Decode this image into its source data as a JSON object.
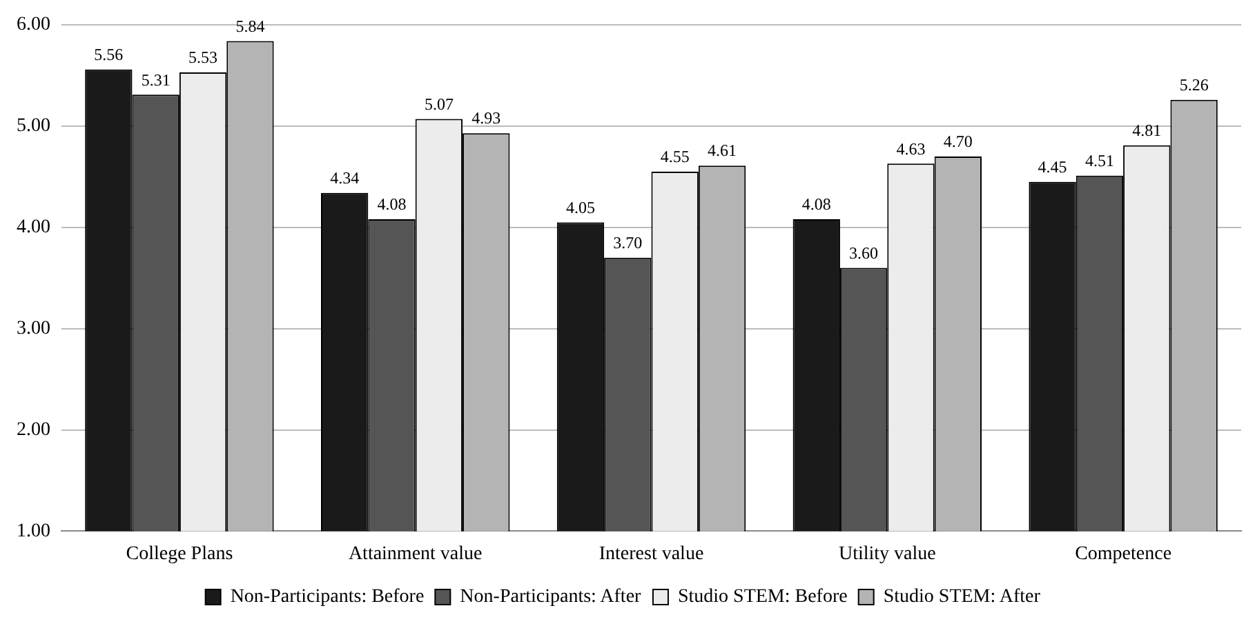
{
  "chart_data": {
    "type": "bar",
    "categories": [
      "College Plans",
      "Attainment value",
      "Interest value",
      "Utility value",
      "Competence"
    ],
    "series": [
      {
        "name": "Non-Participants: Before",
        "color": "#1a1a1a",
        "values": [
          5.56,
          4.34,
          4.05,
          4.08,
          4.45
        ],
        "value_labels": [
          "5.56",
          "4.34",
          "4.05",
          "4.08",
          "4.45"
        ]
      },
      {
        "name": "Non-Participants: After",
        "color": "#555555",
        "values": [
          5.31,
          4.08,
          3.7,
          3.6,
          4.51
        ],
        "value_labels": [
          "5.31",
          "4.08",
          "3.70",
          "3.60",
          "4.51"
        ]
      },
      {
        "name": "Studio STEM: Before",
        "color": "#ececec",
        "values": [
          5.53,
          5.07,
          4.55,
          4.63,
          4.81
        ],
        "value_labels": [
          "5.53",
          "5.07",
          "4.55",
          "4.63",
          "4.81"
        ]
      },
      {
        "name": "Studio STEM: After",
        "color": "#b4b4b4",
        "values": [
          5.84,
          4.93,
          4.61,
          4.7,
          5.26
        ],
        "value_labels": [
          "5.84",
          "4.93",
          "4.61",
          "4.70",
          "5.26"
        ]
      }
    ],
    "ylim": [
      1,
      6
    ],
    "yticks": [
      {
        "value": 1,
        "label": "1.00"
      },
      {
        "value": 2,
        "label": "2.00"
      },
      {
        "value": 3,
        "label": "3.00"
      },
      {
        "value": 4,
        "label": "4.00"
      },
      {
        "value": 5,
        "label": "5.00"
      },
      {
        "value": 6,
        "label": "6.00"
      }
    ],
    "grid": "y",
    "legend": "bottom"
  }
}
